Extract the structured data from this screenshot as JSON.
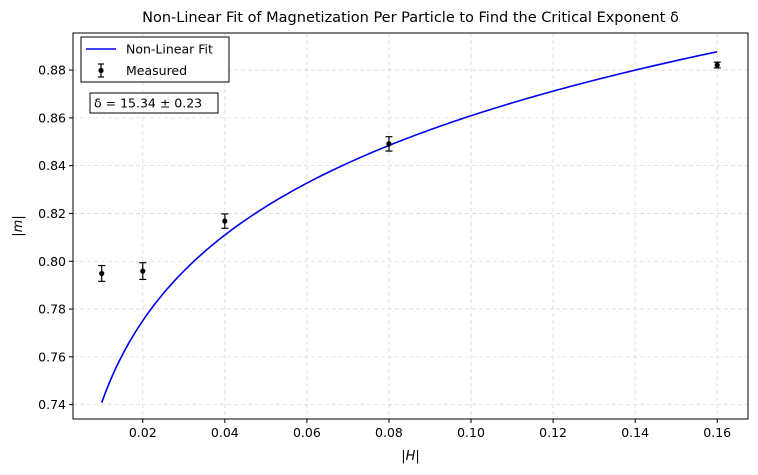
{
  "chart_data": {
    "type": "scatter",
    "title": "Non-Linear Fit of Magnetization Per Particle to Find the Critical Exponent δ",
    "xlabel": "|H|",
    "ylabel": "|m|",
    "xlim": [
      0.003,
      0.1675
    ],
    "ylim": [
      0.734,
      0.8955
    ],
    "x_ticks": [
      0.02,
      0.04,
      0.06,
      0.08,
      0.1,
      0.12,
      0.14,
      0.16
    ],
    "x_tick_labels": [
      "0.02",
      "0.04",
      "0.06",
      "0.08",
      "0.10",
      "0.12",
      "0.14",
      "0.16"
    ],
    "y_ticks": [
      0.74,
      0.76,
      0.78,
      0.8,
      0.82,
      0.84,
      0.86,
      0.88
    ],
    "y_tick_labels": [
      "0.74",
      "0.76",
      "0.78",
      "0.80",
      "0.82",
      "0.84",
      "0.86",
      "0.88"
    ],
    "grid": true,
    "legend_position": "top-left",
    "series": [
      {
        "name": "Non-Linear Fit",
        "kind": "line",
        "color": "#0000ee",
        "x_range": [
          0.01,
          0.16
        ],
        "model": "power_law",
        "A": 1.0003,
        "delta": 15.34
      },
      {
        "name": "Measured",
        "kind": "errorbar",
        "color": "#000000",
        "x": [
          0.01,
          0.02,
          0.04,
          0.08,
          0.16
        ],
        "y": [
          0.7949,
          0.7959,
          0.8168,
          0.8491,
          0.8821
        ],
        "yerr": [
          0.0033,
          0.0035,
          0.003,
          0.003,
          0.0012
        ]
      }
    ],
    "annotation": "δ = 15.34 ± 0.23"
  }
}
